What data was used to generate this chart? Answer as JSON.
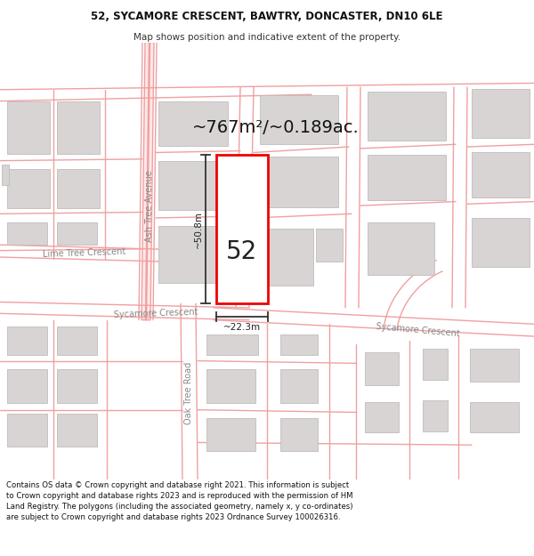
{
  "title_line1": "52, SYCAMORE CRESCENT, BAWTRY, DONCASTER, DN10 6LE",
  "title_line2": "Map shows position and indicative extent of the property.",
  "area_text": "~767m²/~0.189ac.",
  "number_label": "52",
  "dim_height": "~50.8m",
  "dim_width": "~22.3m",
  "footer_text": "Contains OS data © Crown copyright and database right 2021. This information is subject to Crown copyright and database rights 2023 and is reproduced with the permission of HM Land Registry. The polygons (including the associated geometry, namely x, y co-ordinates) are subject to Crown copyright and database rights 2023 Ordnance Survey 100026316.",
  "map_bg": "#faf8f8",
  "road_line_color": "#f0a0a0",
  "road_fill_color": "#fde8e8",
  "building_fill": "#d8d4d4",
  "building_outline": "#c0bcbc",
  "plot_color": "#ee0000",
  "dim_color": "#333333",
  "street_label_color": "#888888",
  "title_bg": "#ffffff",
  "footer_bg": "#ffffff",
  "title_fontsize": 8.5,
  "subtitle_fontsize": 7.5,
  "area_fontsize": 14,
  "label_fontsize": 7,
  "dim_fontsize": 7.5,
  "number_fontsize": 20
}
